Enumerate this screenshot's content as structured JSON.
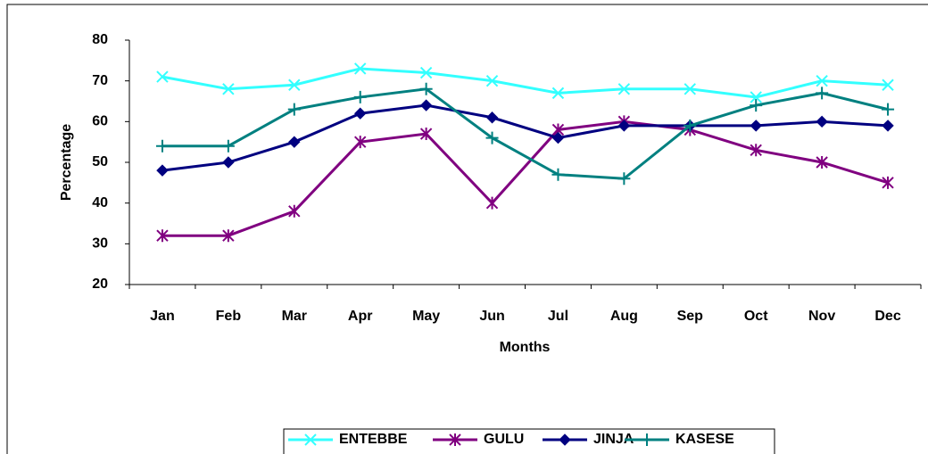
{
  "chart_data": {
    "type": "line",
    "x_label": "Months",
    "y_label": "Percentage",
    "categories": [
      "Jan",
      "Feb",
      "Mar",
      "Apr",
      "May",
      "Jun",
      "Jul",
      "Aug",
      "Sep",
      "Oct",
      "Nov",
      "Dec"
    ],
    "series": [
      {
        "name": "ENTEBBE",
        "color": "#33ffff",
        "marker": "x",
        "values": [
          71,
          68,
          69,
          73,
          72,
          70,
          67,
          68,
          68,
          66,
          70,
          69
        ]
      },
      {
        "name": "GULU",
        "color": "#800080",
        "marker": "asterisk",
        "values": [
          32,
          32,
          38,
          55,
          57,
          40,
          58,
          60,
          58,
          53,
          50,
          45
        ]
      },
      {
        "name": "JINJA",
        "color": "#000080",
        "marker": "diamond",
        "values": [
          48,
          50,
          55,
          62,
          64,
          61,
          56,
          59,
          59,
          59,
          60,
          59
        ]
      },
      {
        "name": "KASESE",
        "color": "#008080",
        "marker": "plus",
        "values": [
          54,
          54,
          63,
          66,
          68,
          56,
          47,
          46,
          59,
          64,
          67,
          63
        ]
      }
    ],
    "ylim": [
      20,
      80
    ],
    "yticks": [
      20,
      30,
      40,
      50,
      60,
      70,
      80
    ],
    "grid": false,
    "legend": "bottom"
  }
}
